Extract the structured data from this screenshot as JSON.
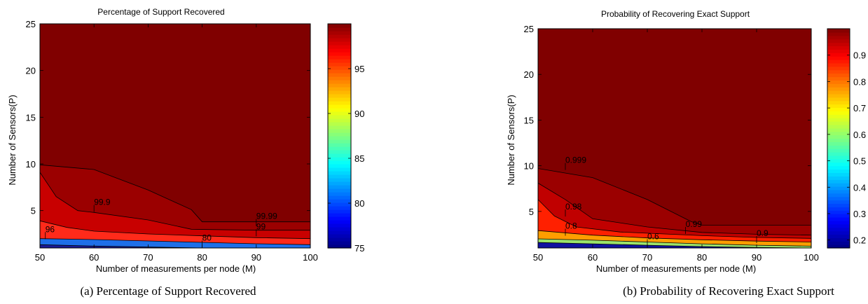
{
  "chart_data": [
    {
      "type": "contour",
      "title": "Percentage of Support Recovered",
      "caption": "(a) Percentage of Support Recovered",
      "xlabel": "Number of measurements per node (M)",
      "ylabel": "Number of Sensors(P)",
      "xlim": [
        50,
        100
      ],
      "ylim": [
        1,
        25
      ],
      "xticks": [
        "50",
        "60",
        "70",
        "80",
        "90",
        "100"
      ],
      "yticks": [
        "5",
        "10",
        "15",
        "20",
        "25"
      ],
      "colorbar": {
        "range": [
          75,
          100
        ],
        "ticks": [
          "75",
          "80",
          "85",
          "90",
          "95"
        ]
      },
      "contours": [
        {
          "level": 75,
          "label": "",
          "color": "#1a1a95",
          "points": [
            [
              50,
              1.35
            ],
            [
              60,
              1.2
            ],
            [
              70,
              1.1
            ],
            [
              80,
              1.0
            ],
            [
              100,
              1.0
            ]
          ]
        },
        {
          "level": 80,
          "label": "80",
          "label_at": [
            80,
            1.5
          ],
          "color": "#1e6fe8",
          "points": [
            [
              50,
              2.0
            ],
            [
              60,
              1.9
            ],
            [
              70,
              1.75
            ],
            [
              80,
              1.6
            ],
            [
              90,
              1.45
            ],
            [
              100,
              1.35
            ]
          ]
        },
        {
          "level": 96,
          "label": "96",
          "label_at": [
            51,
            2.4
          ],
          "color": "#ff2a1a",
          "points": [
            [
              50,
              3.9
            ],
            [
              55,
              3.2
            ],
            [
              60,
              2.8
            ],
            [
              70,
              2.5
            ],
            [
              80,
              2.3
            ],
            [
              90,
              2.1
            ],
            [
              100,
              2.0
            ]
          ]
        },
        {
          "level": 99,
          "label": "99",
          "label_at": [
            90,
            2.7
          ],
          "color": "#c80000",
          "points": [
            [
              50,
              9.1
            ],
            [
              53,
              6.5
            ],
            [
              57,
              5.0
            ],
            [
              60,
              4.8
            ],
            [
              70,
              4.0
            ],
            [
              78,
              3.0
            ],
            [
              90,
              2.9
            ],
            [
              100,
              2.9
            ]
          ]
        },
        {
          "level": 99.9,
          "label": "99.9",
          "label_at": [
            60,
            5.3
          ],
          "color": "#9b0000",
          "points": [
            [
              50,
              9.9
            ],
            [
              60,
              9.4
            ],
            [
              70,
              7.2
            ],
            [
              78,
              5.1
            ],
            [
              80,
              3.8
            ],
            [
              100,
              3.8
            ]
          ]
        },
        {
          "level": 99.99,
          "label": "99.99",
          "label_at": [
            90,
            3.8
          ],
          "color": "#800000",
          "points": []
        }
      ],
      "background_color": "#800000"
    },
    {
      "type": "contour",
      "title": "Probability of Recovering Exact Support",
      "caption": "(b) Probability of Recovering Exact Support",
      "xlabel": "Number of measurements per node (M)",
      "ylabel": "Number of Sensors(P)",
      "xlim": [
        50,
        100
      ],
      "ylim": [
        1,
        25
      ],
      "xticks": [
        "50",
        "60",
        "70",
        "80",
        "90",
        "100"
      ],
      "yticks": [
        "5",
        "10",
        "15",
        "20",
        "25"
      ],
      "colorbar": {
        "range": [
          0.17,
          1.0
        ],
        "ticks": [
          "0.2",
          "0.3",
          "0.4",
          "0.5",
          "0.6",
          "0.7",
          "0.8",
          "0.9"
        ]
      },
      "contours": [
        {
          "level": 0.2,
          "label": "",
          "color": "#1010a0",
          "points": [
            [
              50,
              1.6
            ],
            [
              60,
              1.45
            ],
            [
              70,
              1.3
            ],
            [
              80,
              1.15
            ],
            [
              90,
              1.05
            ],
            [
              100,
              1.0
            ]
          ]
        },
        {
          "level": 0.6,
          "label": "0.6",
          "label_at": [
            70,
            1.65
          ],
          "color": "#9be36a",
          "points": [
            [
              50,
              2.0
            ],
            [
              60,
              1.85
            ],
            [
              70,
              1.65
            ],
            [
              80,
              1.45
            ],
            [
              90,
              1.3
            ],
            [
              100,
              1.2
            ]
          ]
        },
        {
          "level": 0.8,
          "label": "0.8",
          "label_at": [
            55,
            2.8
          ],
          "color": "#ff9d00",
          "points": [
            [
              50,
              2.9
            ],
            [
              60,
              2.4
            ],
            [
              70,
              2.1
            ],
            [
              80,
              1.9
            ],
            [
              90,
              1.75
            ],
            [
              100,
              1.65
            ]
          ]
        },
        {
          "level": 0.9,
          "label": "0.9",
          "label_at": [
            90,
            2.0
          ],
          "color": "#ff2000",
          "points": [
            [
              50,
              6.3
            ],
            [
              53,
              4.5
            ],
            [
              57,
              3.3
            ],
            [
              65,
              2.75
            ],
            [
              80,
              2.35
            ],
            [
              90,
              2.15
            ],
            [
              100,
              2.05
            ]
          ]
        },
        {
          "level": 0.98,
          "label": "0.98",
          "label_at": [
            55,
            4.9
          ],
          "color": "#c00000",
          "points": [
            [
              50,
              8.1
            ],
            [
              55,
              6.3
            ],
            [
              60,
              4.2
            ],
            [
              70,
              3.3
            ],
            [
              80,
              2.7
            ],
            [
              90,
              2.5
            ],
            [
              100,
              2.4
            ]
          ]
        },
        {
          "level": 0.99,
          "label": "0.99",
          "label_at": [
            77,
            3.0
          ],
          "color": "#9b0000",
          "points": [
            [
              50,
              9.7
            ],
            [
              60,
              8.7
            ],
            [
              70,
              6.3
            ],
            [
              78,
              3.9
            ],
            [
              80,
              3.5
            ],
            [
              100,
              3.5
            ]
          ]
        },
        {
          "level": 0.999,
          "label": "0.999",
          "label_at": [
            55,
            10.0
          ],
          "color": "#800000",
          "points": []
        }
      ],
      "background_color": "#800000"
    }
  ]
}
